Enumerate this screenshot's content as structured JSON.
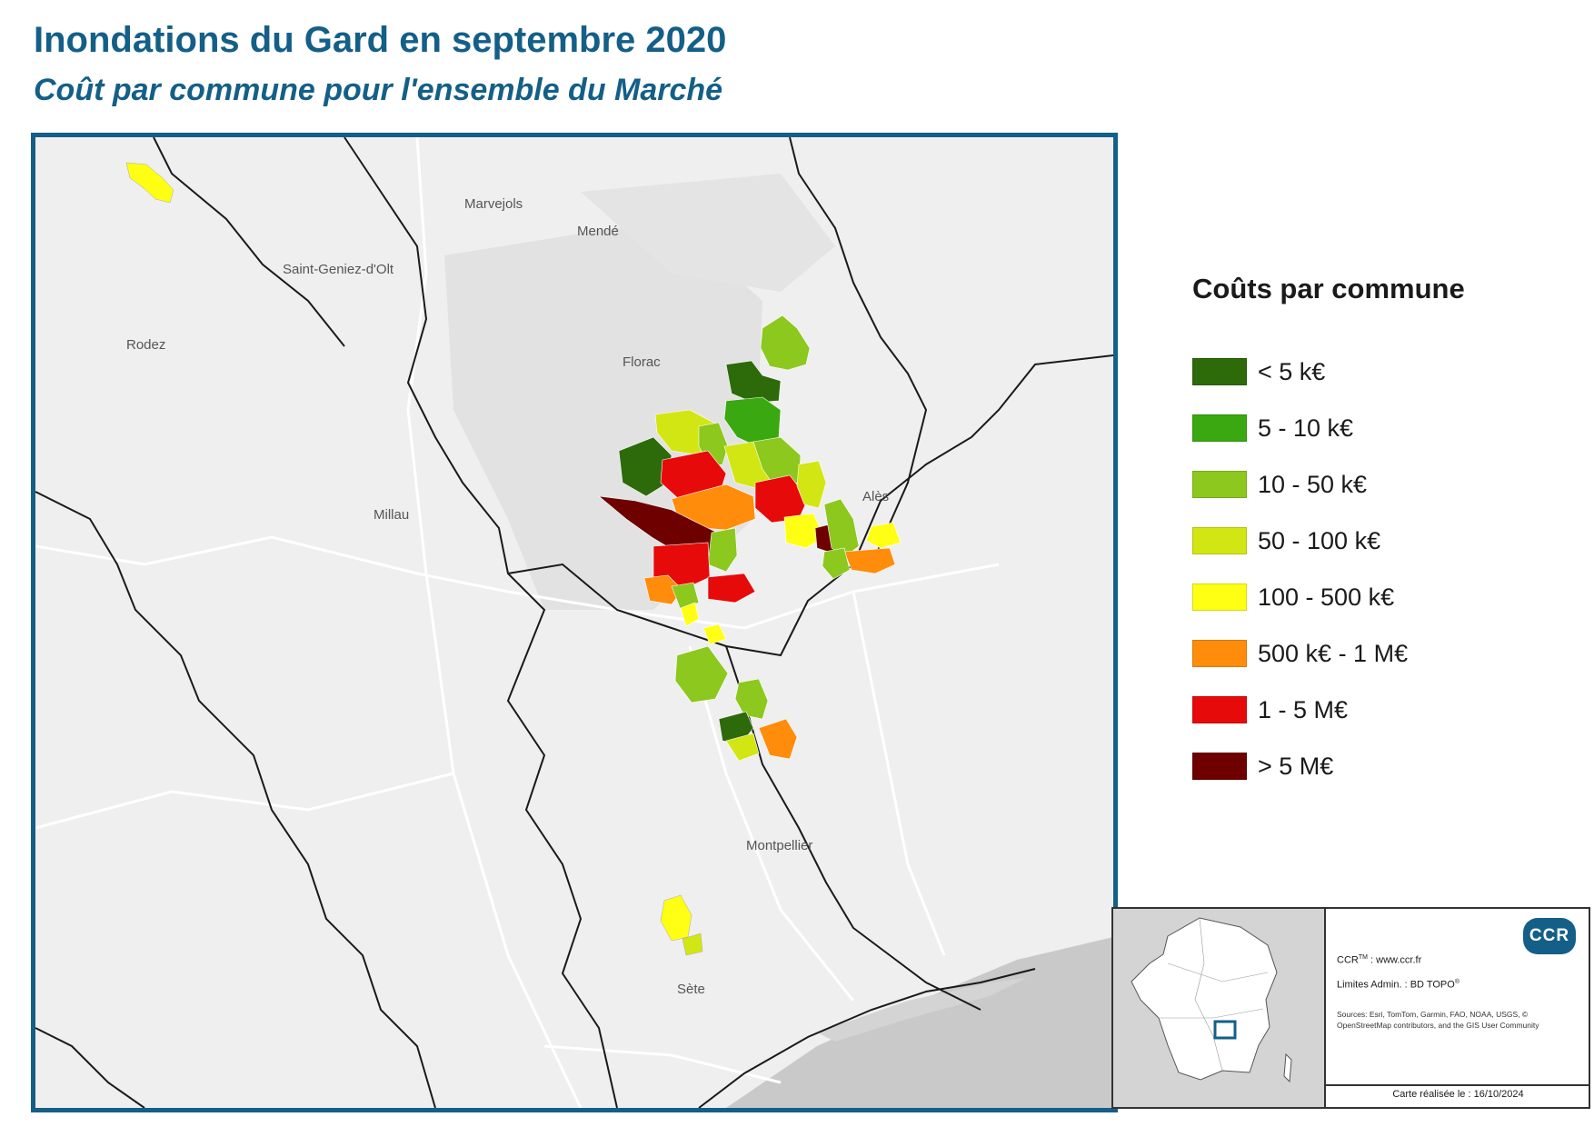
{
  "title": "Inondations du Gard en septembre 2020",
  "subtitle": "Coût par commune pour l'ensemble du Marché",
  "map": {
    "place_labels": {
      "marvejols": "Marvejols",
      "mende": "Mendé",
      "saint_geniez": "Saint-Geniez-d'Olt",
      "rodez": "Rodez",
      "florac": "Florac",
      "millau": "Millau",
      "ales": "Alès",
      "montpellier": "Montpellier",
      "sete": "Sète"
    }
  },
  "legend": {
    "title": "Coûts par commune",
    "classes": [
      {
        "label": "< 5 k€",
        "color": "#2d6a0a"
      },
      {
        "label": "5 - 10 k€",
        "color": "#3aa810"
      },
      {
        "label": "10 - 50 k€",
        "color": "#8cc81e"
      },
      {
        "label": "50 - 100 k€",
        "color": "#d2e614"
      },
      {
        "label": "100 - 500 k€",
        "color": "#ffff14"
      },
      {
        "label": "500 k€ - 1 M€",
        "color": "#ff8c0a"
      },
      {
        "label": "1 - 5 M€",
        "color": "#e60a0a"
      },
      {
        "label": "> 5 M€",
        "color": "#6e0000"
      }
    ]
  },
  "info": {
    "logo": "CCR",
    "ccr_prefix": "CCR",
    "ccr_sup": "TM",
    "ccr_site": " : www.ccr.fr",
    "limits": "Limites Admin. : BD TOPO",
    "limits_sup": "®",
    "sources": "Sources: Esri, TomTom, Garmin, FAO, NOAA, USGS, © OpenStreetMap contributors, and the GIS User Community",
    "date": "Carte réalisée le : 16/10/2024"
  }
}
